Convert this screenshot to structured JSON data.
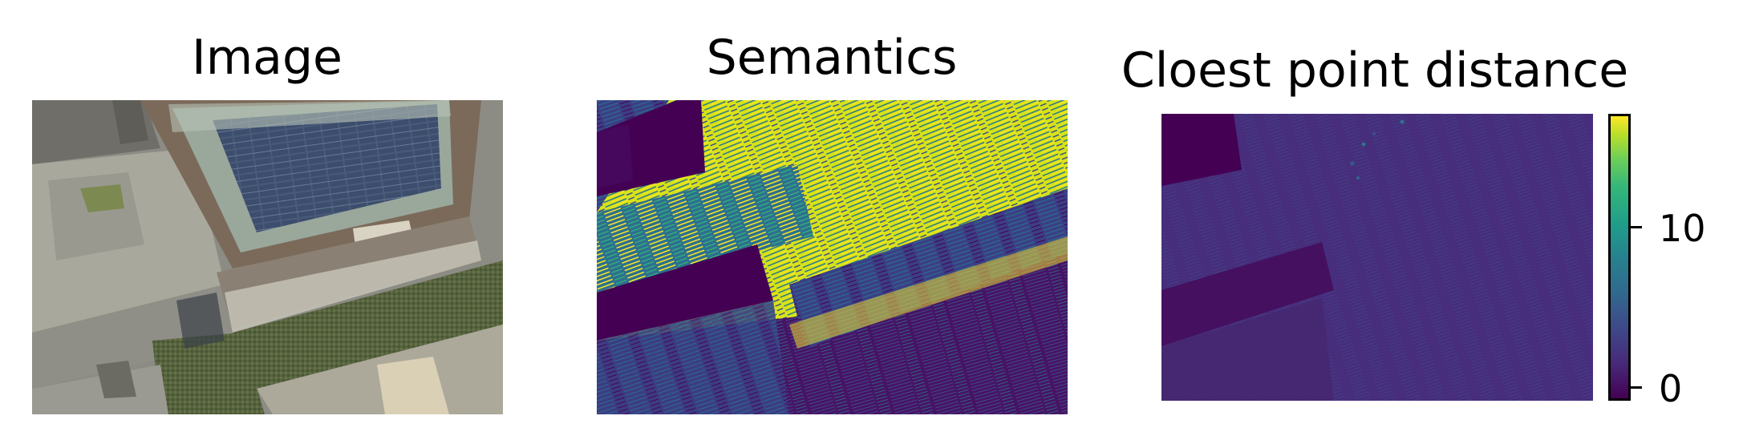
{
  "panels": [
    {
      "title": "Image",
      "content": "aerial-photo"
    },
    {
      "title": "Semantics",
      "content": "semantic-map"
    },
    {
      "title": "Cloest point distance",
      "content": "distance-map"
    }
  ],
  "colorbar": {
    "colormap": "viridis",
    "ticks": [
      {
        "value": 10,
        "label": "10"
      },
      {
        "value": 0,
        "label": "0"
      }
    ]
  }
}
